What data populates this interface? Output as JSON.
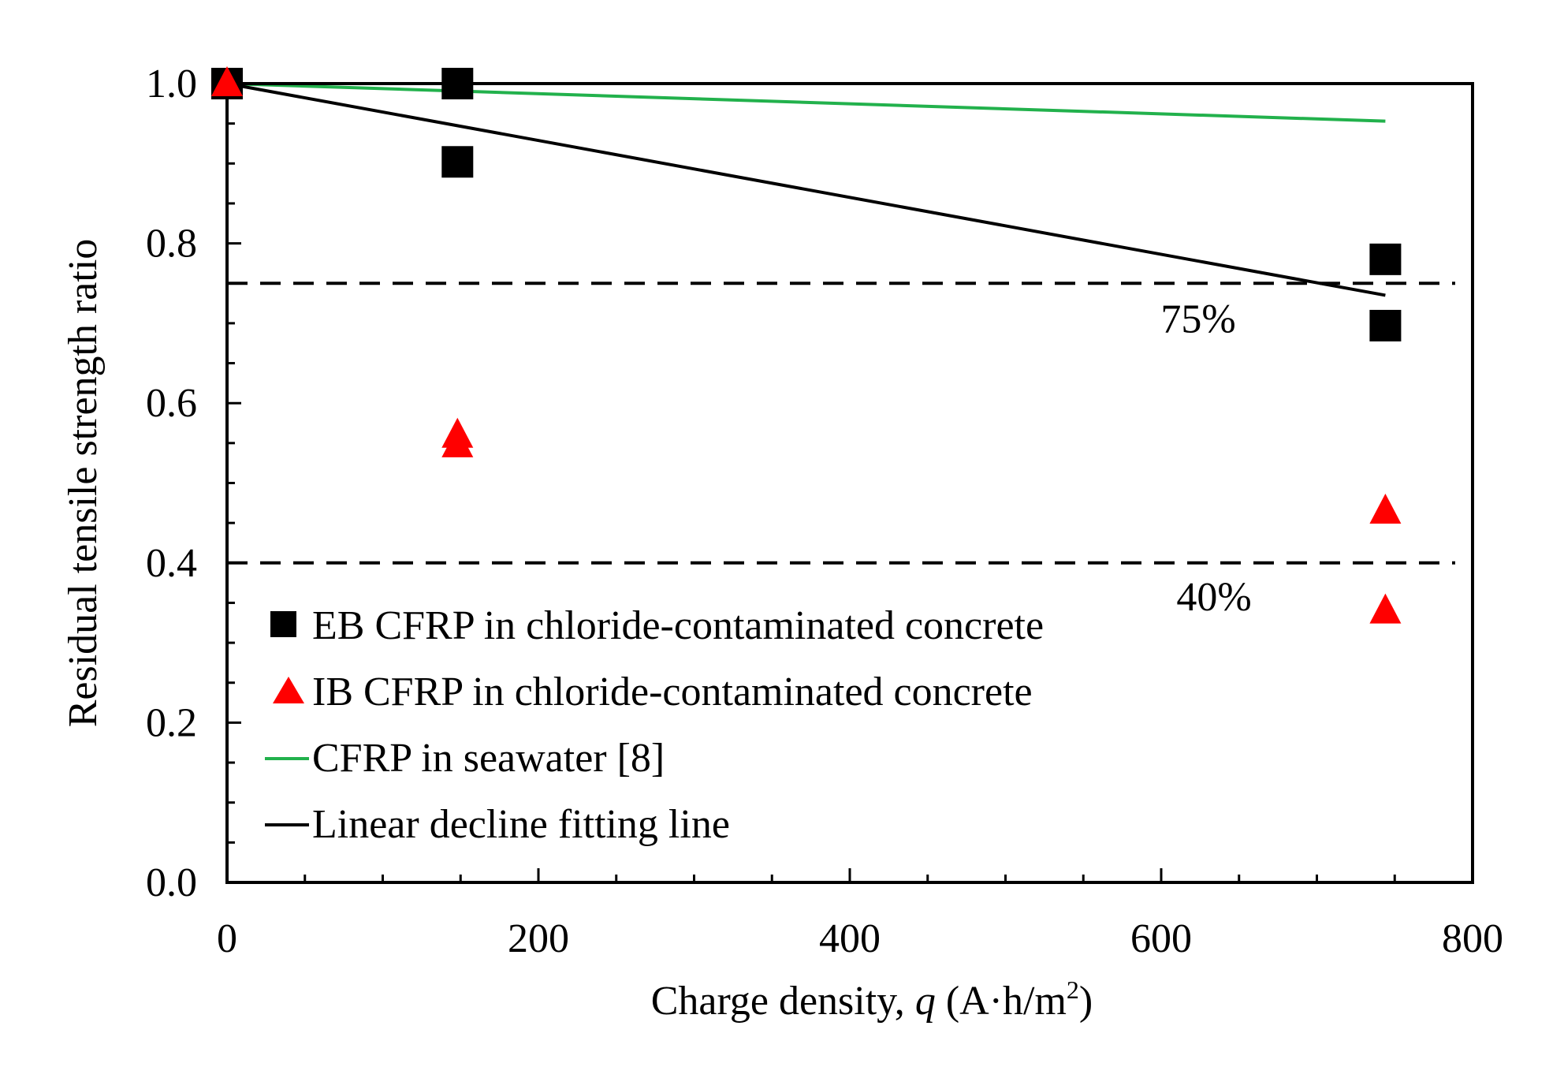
{
  "chart_data": {
    "type": "scatter",
    "title": "",
    "xlabel": {
      "prefix": "Charge density, ",
      "variable": "q",
      "unit_open": " (A·h/m",
      "unit_sup": "2",
      "unit_close": ")"
    },
    "ylabel": "Residual tensile strength ratio",
    "xlim": [
      0,
      800
    ],
    "ylim": [
      0.0,
      1.0
    ],
    "x_ticks": [
      0,
      200,
      400,
      600,
      800
    ],
    "x_tick_labels": [
      "0",
      "200",
      "400",
      "600",
      "800"
    ],
    "y_ticks": [
      0.0,
      0.2,
      0.4,
      0.6,
      0.8,
      1.0
    ],
    "y_tick_labels": [
      "0.0",
      "0.2",
      "0.4",
      "0.6",
      "0.8",
      "1.0"
    ],
    "grid": false,
    "legend_position": "bottom-left",
    "series": [
      {
        "name": "EB CFRP in chloride-contaminated concrete",
        "kind": "scatter",
        "marker": "square",
        "color": "#000000",
        "x": [
          0,
          148,
          148,
          744,
          744
        ],
        "y": [
          1.0,
          1.0,
          0.902,
          0.78,
          0.697
        ]
      },
      {
        "name": "IB CFRP in chloride-contaminated concrete",
        "kind": "scatter",
        "marker": "triangle",
        "color": "#ff0000",
        "x": [
          0,
          148,
          148,
          744,
          744
        ],
        "y": [
          1.0,
          0.56,
          0.548,
          0.465,
          0.34
        ]
      },
      {
        "name": "CFRP in seawater [8]",
        "kind": "line",
        "color": "#22b14c",
        "x": [
          0,
          744
        ],
        "y": [
          1.0,
          0.953
        ]
      },
      {
        "name": "Linear decline fitting line",
        "kind": "line",
        "color": "#000000",
        "x": [
          0,
          744
        ],
        "y": [
          1.0,
          0.735
        ]
      }
    ],
    "reference_lines": [
      {
        "y": 0.75,
        "label": "75%"
      },
      {
        "y": 0.4,
        "label": "40%"
      }
    ]
  }
}
